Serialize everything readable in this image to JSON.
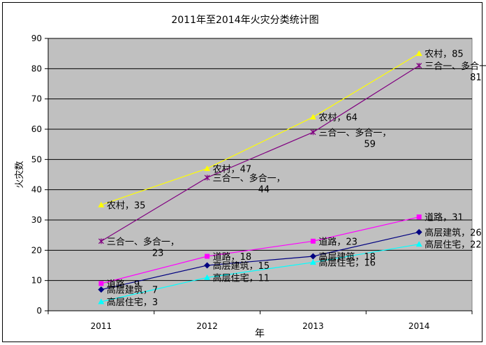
{
  "chart_data": {
    "type": "line",
    "title": "2011年至2014年火灾分类统计图",
    "xlabel": "年",
    "ylabel": "火灾数",
    "categories": [
      "2011",
      "2012",
      "2013",
      "2014"
    ],
    "ylim": [
      0,
      90
    ],
    "y_ticks": [
      "0",
      "10",
      "20",
      "30",
      "40",
      "50",
      "60",
      "70",
      "80",
      "90"
    ],
    "grid": true,
    "legend": "none",
    "series": [
      {
        "name": "农村",
        "values": [
          35,
          47,
          64,
          85
        ],
        "color": "#ffff00",
        "marker": "triangle",
        "labels": [
          "农村，35",
          "农村，47",
          "农村，64",
          "农村，85"
        ]
      },
      {
        "name": "三合一、多合一",
        "values": [
          23,
          44,
          59,
          81
        ],
        "color": "#800080",
        "marker": "star",
        "labels": [
          "三合一、多合一，\n23",
          "三合一、多合一，\n44",
          "三合一、多合一，\n59",
          "三合一、多合一，\n81"
        ]
      },
      {
        "name": "道路",
        "values": [
          9,
          18,
          23,
          31
        ],
        "color": "#ff00ff",
        "marker": "square",
        "labels": [
          "道路，9",
          "道路，18",
          "道路，23",
          "道路，31"
        ]
      },
      {
        "name": "高层建筑",
        "values": [
          7,
          15,
          18,
          26
        ],
        "color": "#000080",
        "marker": "diamond",
        "labels": [
          "高层建筑，7",
          "高层建筑，15",
          "高层建筑，18",
          "高层建筑，26"
        ]
      },
      {
        "name": "高层住宅",
        "values": [
          3,
          11,
          16,
          22
        ],
        "color": "#00ffff",
        "marker": "triangle",
        "labels": [
          "高层住宅，3",
          "高层住宅，11",
          "高层住宅，16",
          "高层住宅，22"
        ]
      }
    ],
    "plot_background": "#c0c0c0"
  }
}
